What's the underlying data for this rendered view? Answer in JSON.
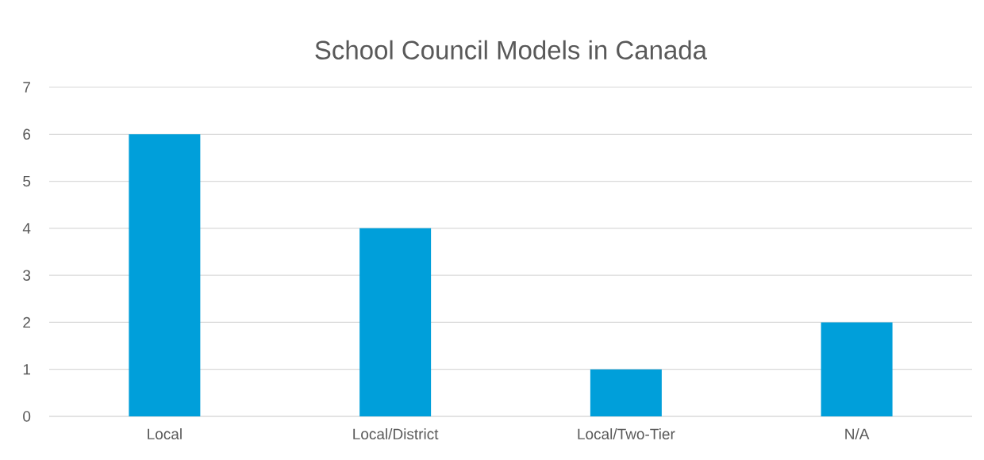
{
  "chart_data": {
    "type": "bar",
    "title": "School Council Models in Canada",
    "categories": [
      "Local",
      "Local/District",
      "Local/Two-Tier",
      "N/A"
    ],
    "values": [
      6,
      4,
      1,
      2
    ],
    "color": "#009fda",
    "ylim": [
      0,
      7
    ],
    "yticks": [
      0,
      1,
      2,
      3,
      4,
      5,
      6,
      7
    ],
    "grid": "y"
  }
}
